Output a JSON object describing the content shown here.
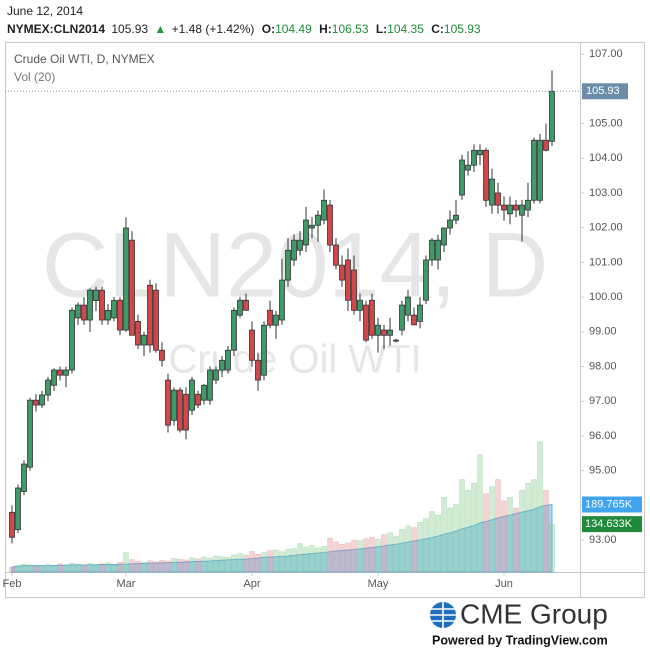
{
  "header": {
    "date": "June 12, 2014",
    "symbol": "NYMEX:CLN2014",
    "last": "105.93",
    "arrow": "▲",
    "change": "+1.48 (+1.42%)",
    "ohlc": [
      {
        "label": "O:",
        "value": "104.49"
      },
      {
        "label": "H:",
        "value": "106.53"
      },
      {
        "label": "L:",
        "value": "104.35"
      },
      {
        "label": "C:",
        "value": "105.93"
      }
    ]
  },
  "footer": {
    "logo": "CME Group",
    "powered": "Powered by TradingView.com"
  },
  "chart_data": {
    "type": "candlestick",
    "series_name": "Crude Oil WTI, D, NYMEX",
    "watermark": "CLN2014, D",
    "watermark_subtitle": "Crude Oil WTI",
    "up_color": "#3f9a68",
    "down_color": "#d2474a",
    "last_price_color": "#6b8cab",
    "categories": [
      "Feb",
      null,
      null,
      null,
      null,
      null,
      null,
      null,
      null,
      null,
      null,
      null,
      null,
      null,
      null,
      null,
      null,
      null,
      null,
      "Mar",
      null,
      null,
      null,
      null,
      null,
      null,
      null,
      null,
      null,
      null,
      null,
      null,
      null,
      null,
      null,
      null,
      null,
      null,
      null,
      null,
      "Apr",
      null,
      null,
      null,
      null,
      null,
      null,
      null,
      null,
      null,
      null,
      null,
      null,
      null,
      null,
      null,
      null,
      null,
      null,
      null,
      null,
      "May",
      null,
      null,
      null,
      null,
      null,
      null,
      null,
      null,
      null,
      null,
      null,
      null,
      null,
      null,
      null,
      null,
      null,
      null,
      null,
      null,
      "Jun",
      null,
      null,
      null,
      null,
      null,
      null,
      null,
      null
    ],
    "open": [
      93.8,
      93.3,
      94.4,
      95.1,
      97.03,
      96.89,
      97.18,
      97.46,
      97.9,
      97.75,
      97.9,
      99.4,
      99.77,
      99.34,
      99.9,
      100.2,
      99.34,
      99.4,
      99.91,
      99.05,
      101.64,
      99.3,
      98.62,
      100.34,
      100.2,
      98.47,
      97.61,
      96.45,
      97.32,
      97.2,
      96.74,
      97.2,
      97.03,
      97.03,
      97.61,
      97.9,
      97.9,
      98.47,
      99.48,
      99.91,
      99.05,
      98.18,
      97.75,
      99.62,
      99.19,
      99.34,
      100.49,
      101.07,
      101.35,
      101.5,
      101.99,
      102.07,
      102.22,
      102.65,
      101.5,
      100.92,
      101.07,
      100.78,
      99.62,
      99.77,
      99.91,
      98.9,
      99.05,
      98.9,
      98.76,
      99.05,
      99.48,
      99.48,
      99.3,
      99.91,
      101.07,
      101.07,
      101.5,
      101.99,
      102.22,
      102.94,
      103.66,
      103.8,
      104.1,
      104.23,
      102.65,
      103.0,
      102.65,
      102.4,
      102.65,
      102.36,
      102.51,
      102.79,
      102.79,
      104.52,
      104.49
    ],
    "high": [
      94.0,
      94.6,
      95.3,
      97.1,
      97.2,
      97.3,
      97.7,
      97.95,
      98.0,
      98.0,
      99.7,
      99.85,
      100.0,
      100.25,
      100.3,
      100.3,
      99.8,
      100.0,
      100.0,
      102.3,
      101.9,
      99.5,
      99.0,
      100.5,
      100.4,
      98.7,
      97.8,
      97.4,
      97.4,
      97.4,
      97.7,
      97.3,
      97.5,
      98.0,
      98.0,
      98.3,
      98.6,
      99.7,
      100.0,
      100.1,
      99.3,
      98.4,
      99.3,
      99.9,
      99.6,
      101.1,
      101.7,
      101.8,
      101.9,
      102.6,
      102.3,
      102.5,
      103.1,
      102.8,
      101.7,
      101.2,
      101.4,
      101.2,
      100.1,
      99.9,
      100.1,
      99.4,
      99.2,
      99.4,
      98.8,
      99.9,
      100.2,
      99.7,
      100.0,
      101.2,
      101.7,
      101.8,
      102.0,
      102.5,
      102.8,
      104.1,
      104.2,
      104.4,
      104.4,
      104.3,
      103.7,
      103.3,
      102.9,
      102.9,
      102.8,
      102.8,
      103.3,
      104.6,
      104.7,
      105.0,
      106.53
    ],
    "low": [
      92.9,
      93.2,
      94.3,
      95.0,
      96.7,
      96.8,
      97.0,
      97.3,
      97.6,
      97.4,
      97.8,
      99.2,
      99.2,
      99.0,
      99.6,
      99.2,
      99.2,
      99.3,
      98.9,
      99.0,
      98.9,
      98.5,
      98.3,
      98.4,
      98.4,
      98.0,
      96.1,
      96.3,
      96.1,
      95.9,
      96.6,
      96.8,
      96.9,
      96.9,
      97.5,
      97.7,
      97.8,
      98.3,
      99.4,
      99.6,
      98.0,
      97.3,
      97.6,
      99.1,
      98.8,
      99.2,
      100.3,
      100.9,
      101.2,
      101.3,
      101.7,
      101.6,
      102.1,
      101.3,
      100.8,
      100.3,
      99.6,
      99.5,
      99.3,
      98.7,
      98.8,
      98.4,
      98.5,
      98.6,
      98.7,
      98.9,
      99.3,
      99.2,
      99.1,
      99.8,
      100.9,
      100.8,
      101.3,
      101.8,
      102.1,
      102.8,
      103.5,
      103.6,
      103.8,
      102.6,
      102.4,
      102.4,
      102.2,
      102.1,
      102.3,
      101.6,
      102.3,
      102.7,
      102.7,
      104.2,
      104.35
    ],
    "close": [
      93.08,
      94.5,
      95.19,
      97.03,
      96.89,
      97.18,
      97.61,
      97.9,
      97.75,
      97.9,
      99.62,
      99.77,
      99.34,
      100.2,
      100.2,
      99.34,
      99.62,
      99.9,
      99.05,
      101.99,
      98.9,
      98.62,
      98.9,
      98.62,
      98.47,
      98.18,
      96.31,
      97.32,
      96.17,
      96.17,
      97.61,
      96.89,
      97.46,
      97.9,
      97.9,
      98.18,
      98.47,
      99.62,
      99.91,
      99.62,
      98.18,
      97.61,
      99.19,
      99.19,
      99.48,
      100.49,
      101.35,
      101.64,
      101.64,
      102.22,
      102.07,
      102.36,
      102.79,
      101.5,
      100.92,
      100.49,
      99.91,
      99.62,
      99.91,
      98.76,
      98.9,
      99.19,
      98.9,
      99.05,
      98.76,
      99.77,
      100.0,
      99.2,
      99.77,
      101.07,
      101.64,
      101.64,
      101.99,
      102.22,
      102.36,
      103.95,
      103.8,
      104.23,
      104.23,
      102.79,
      103.4,
      102.65,
      102.51,
      102.65,
      102.51,
      102.65,
      102.79,
      104.52,
      104.52,
      104.23,
      105.93
    ],
    "ylim": [
      92.08,
      107.35
    ],
    "yticks": [
      {
        "value": 93,
        "label": "93.00"
      },
      {
        "value": 94,
        "label": "94.00"
      },
      {
        "value": 95,
        "label": "95.00"
      },
      {
        "value": 96,
        "label": "96.00"
      },
      {
        "value": 97,
        "label": "97.00"
      },
      {
        "value": 98,
        "label": "98.00"
      },
      {
        "value": 99,
        "label": "99.00"
      },
      {
        "value": 100,
        "label": "100.00"
      },
      {
        "value": 101,
        "label": "101.00"
      },
      {
        "value": 102,
        "label": "102.00"
      },
      {
        "value": 103,
        "label": "103.00"
      },
      {
        "value": 104,
        "label": "104.00"
      },
      {
        "value": 105,
        "label": "105.00"
      },
      {
        "value": 106,
        "label": "106.00"
      },
      {
        "value": 107,
        "label": "107.00"
      }
    ],
    "grid": false,
    "y2lim": [
      0,
      1490000
    ],
    "volume": {
      "name": "Vol (20)",
      "up_color": "rgba(120,200,130,0.35)",
      "down_color": "rgba(225,130,130,0.35)",
      "label_color": "#1f8b3a",
      "values": [
        14000,
        18000,
        22000,
        20000,
        16000,
        19000,
        21000,
        17000,
        23000,
        20000,
        25000,
        22000,
        19000,
        24000,
        21000,
        23000,
        26000,
        20000,
        28000,
        55000,
        35000,
        30000,
        27000,
        32000,
        29000,
        33000,
        31000,
        38000,
        36000,
        34000,
        40000,
        37000,
        42000,
        39000,
        45000,
        43000,
        41000,
        48000,
        52000,
        47000,
        58000,
        50000,
        55000,
        60000,
        62000,
        57000,
        64000,
        66000,
        80000,
        70000,
        75000,
        68000,
        72000,
        95000,
        85000,
        78000,
        82000,
        90000,
        88000,
        94000,
        98000,
        92000,
        105000,
        110000,
        100000,
        120000,
        130000,
        125000,
        140000,
        150000,
        170000,
        160000,
        210000,
        180000,
        190000,
        260000,
        230000,
        250000,
        330000,
        220000,
        240000,
        260000,
        200000,
        210000,
        180000,
        230000,
        250000,
        260000,
        366000,
        230000,
        134633
      ],
      "value_labels": [
        null,
        null,
        null,
        null,
        null,
        null,
        null,
        null,
        null,
        null,
        null,
        null,
        null,
        null,
        null,
        null,
        null,
        null,
        null,
        null,
        null,
        null,
        null,
        null,
        null,
        null,
        null,
        null,
        null,
        null,
        null,
        null,
        null,
        null,
        null,
        null,
        null,
        null,
        null,
        null,
        null,
        null,
        null,
        null,
        null,
        null,
        null,
        null,
        null,
        null,
        null,
        null,
        null,
        null,
        null,
        null,
        null,
        null,
        null,
        null,
        null,
        null,
        null,
        null,
        null,
        null,
        null,
        null,
        null,
        null,
        null,
        null,
        null,
        null,
        null,
        null,
        null,
        null,
        null,
        null,
        null,
        null,
        null,
        null,
        null,
        null,
        null,
        null,
        null,
        null,
        "134.633K"
      ]
    },
    "volume_ma": {
      "color": "rgba(100,180,235,0.55)",
      "label_color": "#3fa3ee",
      "values": [
        14000,
        16000,
        18000,
        18000,
        18000,
        18000,
        18000,
        18000,
        19000,
        19000,
        20000,
        20000,
        20000,
        20000,
        20000,
        21000,
        21000,
        21000,
        21000,
        22000,
        23000,
        24000,
        24000,
        25000,
        25000,
        26000,
        26000,
        27000,
        27000,
        28000,
        29000,
        30000,
        30000,
        31000,
        32000,
        33000,
        34000,
        35000,
        36000,
        36000,
        38000,
        39000,
        41000,
        42000,
        43000,
        44000,
        45000,
        47000,
        49000,
        50000,
        52000,
        53000,
        55000,
        57000,
        59000,
        60000,
        62000,
        63000,
        65000,
        67000,
        69000,
        71000,
        73000,
        76000,
        78000,
        81000,
        84000,
        87000,
        90000,
        93000,
        97000,
        101000,
        106000,
        110000,
        115000,
        121000,
        126000,
        131000,
        138000,
        142000,
        147000,
        152000,
        156000,
        160000,
        164000,
        168000,
        172000,
        176000,
        184000,
        187000,
        189765
      ],
      "value_labels": [
        null,
        null,
        null,
        null,
        null,
        null,
        null,
        null,
        null,
        null,
        null,
        null,
        null,
        null,
        null,
        null,
        null,
        null,
        null,
        null,
        null,
        null,
        null,
        null,
        null,
        null,
        null,
        null,
        null,
        null,
        null,
        null,
        null,
        null,
        null,
        null,
        null,
        null,
        null,
        null,
        null,
        null,
        null,
        null,
        null,
        null,
        null,
        null,
        null,
        null,
        null,
        null,
        null,
        null,
        null,
        null,
        null,
        null,
        null,
        null,
        null,
        null,
        null,
        null,
        null,
        null,
        null,
        null,
        null,
        null,
        null,
        null,
        null,
        null,
        null,
        null,
        null,
        null,
        null,
        null,
        null,
        null,
        null,
        null,
        null,
        null,
        null,
        null,
        null,
        null,
        "189.765K"
      ]
    }
  }
}
